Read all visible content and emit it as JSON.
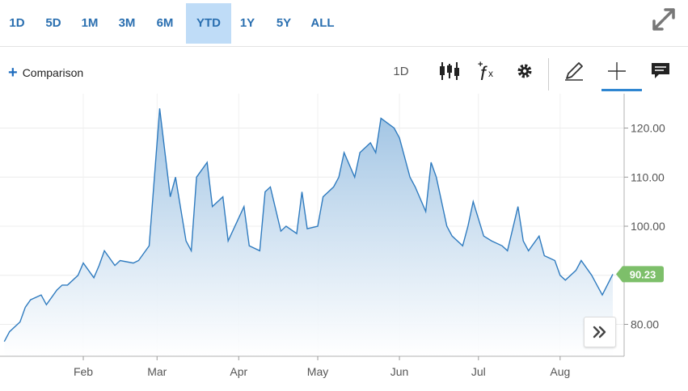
{
  "range_tabs": [
    {
      "label": "1D",
      "active": false
    },
    {
      "label": "5D",
      "active": false
    },
    {
      "label": "1M",
      "active": false
    },
    {
      "label": "3M",
      "active": false
    },
    {
      "label": "6M",
      "active": false
    },
    {
      "label": "YTD",
      "active": true
    },
    {
      "label": "1Y",
      "active": false
    },
    {
      "label": "5Y",
      "active": false
    },
    {
      "label": "ALL",
      "active": false
    }
  ],
  "toolbar": {
    "comparison_label": "Comparison",
    "interval_label": "1D",
    "icons": [
      "candlestick-icon",
      "function-icon",
      "gear-icon",
      "pencil-icon",
      "crosshair-icon",
      "comment-icon",
      "expand-icon"
    ]
  },
  "colors": {
    "accent": "#2a6fb0",
    "active_tab_bg": "#bfdcf7",
    "line": "#2f7bbf",
    "area_top": "#9fc3e3",
    "price_tag": "#7dbf6a"
  },
  "chart_data": {
    "type": "area",
    "x_axis_ticks": [
      "Feb",
      "Mar",
      "Apr",
      "May",
      "Jun",
      "Jul",
      "Aug"
    ],
    "y_axis_ticks": [
      "80.00",
      "90.00",
      "100.00",
      "110.00",
      "120.00"
    ],
    "ylim": [
      73.5,
      127
    ],
    "grid": true,
    "last_price_label": "90.23",
    "last_price": 90.23,
    "x": [
      "Jan 02",
      "Jan 04",
      "Jan 08",
      "Jan 10",
      "Jan 12",
      "Jan 16",
      "Jan 18",
      "Jan 22",
      "Jan 24",
      "Jan 26",
      "Jan 30",
      "Feb 01",
      "Feb 05",
      "Feb 07",
      "Feb 09",
      "Feb 13",
      "Feb 15",
      "Feb 20",
      "Feb 22",
      "Feb 26",
      "Feb 28",
      "Mar 02",
      "Mar 06",
      "Mar 08",
      "Mar 12",
      "Mar 14",
      "Mar 16",
      "Mar 20",
      "Mar 22",
      "Mar 26",
      "Mar 28",
      "Apr 03",
      "Apr 05",
      "Apr 09",
      "Apr 11",
      "Apr 13",
      "Apr 17",
      "Apr 19",
      "Apr 23",
      "Apr 25",
      "Apr 27",
      "May 01",
      "May 03",
      "May 07",
      "May 09",
      "May 11",
      "May 15",
      "May 17",
      "May 21",
      "May 23",
      "May 25",
      "May 30",
      "Jun 01",
      "Jun 05",
      "Jun 07",
      "Jun 11",
      "Jun 13",
      "Jun 15",
      "Jun 19",
      "Jun 21",
      "Jun 25",
      "Jun 27",
      "Jun 29",
      "Jul 03",
      "Jul 06",
      "Jul 10",
      "Jul 12",
      "Jul 16",
      "Jul 18",
      "Jul 20",
      "Jul 24",
      "Jul 26",
      "Jul 30",
      "Aug 01",
      "Aug 03",
      "Aug 07",
      "Aug 09",
      "Aug 13",
      "Aug 15",
      "Aug 17",
      "Aug 21"
    ],
    "series": [
      {
        "values": [
          76.5,
          78.5,
          80.5,
          83.5,
          85,
          86,
          84,
          87,
          88,
          88,
          90,
          92.5,
          89.5,
          92,
          95,
          92,
          93,
          92.5,
          93,
          96,
          110,
          124,
          106,
          110,
          97,
          95,
          110,
          113,
          104,
          106,
          97,
          104,
          96,
          95,
          107,
          108,
          99,
          100,
          98.5,
          107,
          99.5,
          100,
          106,
          108,
          110,
          115,
          110,
          115,
          117,
          115,
          122,
          120,
          118,
          110,
          108,
          103,
          113,
          110,
          100,
          98,
          96,
          100,
          105,
          98,
          97,
          96,
          95,
          104,
          97,
          95,
          98,
          94,
          93,
          90,
          89,
          91,
          93,
          90,
          88,
          86,
          90.23
        ]
      }
    ]
  }
}
